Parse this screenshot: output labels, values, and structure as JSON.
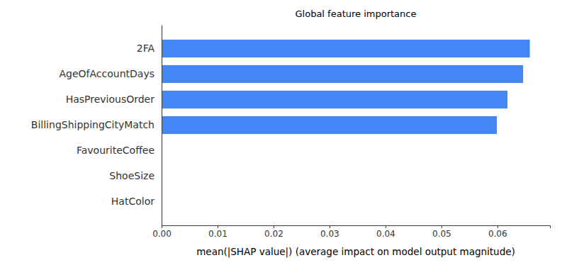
{
  "chart_data": {
    "type": "bar",
    "orientation": "horizontal",
    "title": "Global feature importance",
    "x_label": "mean(|SHAP value|) (average impact on model output magnitude)",
    "categories": [
      "2FA",
      "AgeOfAccountDays",
      "HasPreviousOrder",
      "BillingShippingCityMatch",
      "FavouriteCoffee",
      "ShoeSize",
      "HatColor"
    ],
    "values": [
      0.0658,
      0.0646,
      0.0618,
      0.0599,
      0,
      0,
      0
    ],
    "color": "#4287f5",
    "xlim": [
      0,
      0.0694
    ],
    "xticks": [
      {
        "value": 0,
        "label": "0.00"
      },
      {
        "value": 0.01,
        "label": "0.01"
      },
      {
        "value": 0.02,
        "label": "0.02"
      },
      {
        "value": 0.03,
        "label": "0.03"
      },
      {
        "value": 0.04,
        "label": "0.04"
      },
      {
        "value": 0.05,
        "label": "0.05"
      },
      {
        "value": 0.06,
        "label": "0.06"
      }
    ],
    "grid": false
  }
}
